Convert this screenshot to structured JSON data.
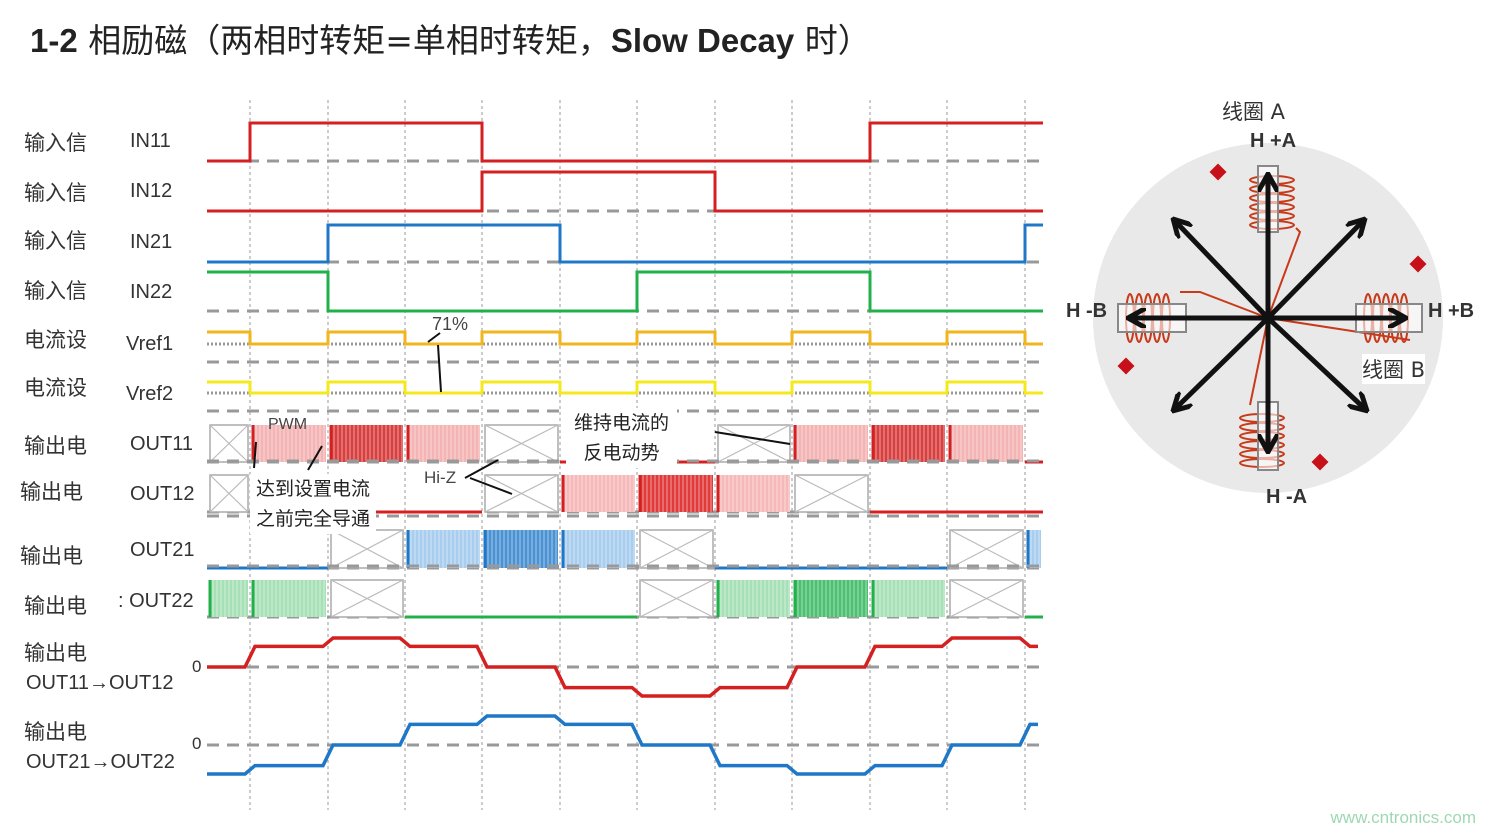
{
  "title": {
    "prefix": "1-2",
    "text": " 相励磁（两相时转矩=单相时转矩，",
    "bold": "Slow Decay",
    "suffix": " 时）"
  },
  "colors": {
    "red": "#d42020",
    "blue": "#1f77c8",
    "green": "#22b04a",
    "orange": "#f2b61c",
    "yellow": "#f5e81c",
    "grid": "#999999"
  },
  "rows": [
    {
      "label": "输入信",
      "signal": "IN11"
    },
    {
      "label": "输入信",
      "signal": "IN12"
    },
    {
      "label": "输入信",
      "signal": "IN21"
    },
    {
      "label": "输入信",
      "signal": "IN22"
    },
    {
      "label": "电流设",
      "signal": "Vref1"
    },
    {
      "label": "电流设",
      "signal": "Vref2"
    },
    {
      "label": "输出电",
      "signal": "OUT11"
    },
    {
      "label": "输出电",
      "signal": "OUT12"
    },
    {
      "label": "输出电",
      "signal": "OUT21"
    },
    {
      "label": "输出电",
      "signal": ":  OUT22"
    },
    {
      "label": "输出电",
      "signal": "OUT11→OUT12",
      "zero": "0"
    },
    {
      "label": "输出电",
      "signal": "OUT21→OUT22",
      "zero": "0"
    }
  ],
  "logic": {
    "IN11": [
      0,
      1,
      1,
      1,
      0,
      0,
      0,
      0,
      0,
      1,
      1,
      1
    ],
    "IN12": [
      0,
      0,
      0,
      0,
      1,
      1,
      1,
      0,
      0,
      0,
      0,
      0
    ],
    "IN21": [
      0,
      0,
      1,
      1,
      1,
      0,
      0,
      0,
      0,
      0,
      0,
      1
    ],
    "IN22": [
      1,
      1,
      0,
      0,
      0,
      0,
      1,
      1,
      1,
      0,
      0,
      0
    ],
    "Vref1": [
      1,
      0,
      1,
      0,
      1,
      0,
      1,
      0,
      1,
      0,
      1,
      0
    ],
    "Vref2": [
      1,
      0,
      1,
      0,
      1,
      0,
      1,
      0,
      1,
      0,
      1,
      0
    ]
  },
  "outputs": {
    "OUT11": [
      "z",
      "pwm",
      "on",
      "pwm",
      "z",
      "low",
      "low",
      "z",
      "pwm",
      "on",
      "pwm",
      "low"
    ],
    "OUT12": [
      "z",
      "z",
      "low",
      "low",
      "z",
      "pwm",
      "on",
      "pwm",
      "z",
      "low",
      "low",
      "low"
    ],
    "OUT21": [
      "low",
      "low",
      "z",
      "pwm",
      "on",
      "pwm",
      "z",
      "low",
      "low",
      "low",
      "z",
      "pwm"
    ],
    "OUT22": [
      "pwm",
      "pwm",
      "z",
      "low",
      "low",
      "low",
      "z",
      "pwm",
      "on",
      "pwm",
      "z",
      "low"
    ]
  },
  "currents": {
    "OUT11→OUT12": [
      0,
      0.71,
      1,
      0.71,
      0,
      -0.71,
      -1,
      -0.71,
      0,
      0.71,
      1,
      0.71
    ],
    "OUT21→OUT22": [
      -1,
      -0.71,
      0,
      0.71,
      1,
      0.71,
      0,
      -0.71,
      -1,
      -0.71,
      0,
      0.71
    ]
  },
  "annotations": {
    "pct": "71%",
    "pwm": "PWM",
    "hiz": "Hi-Z",
    "full_on_1": "达到设置电流",
    "full_on_2": "之前完全导通",
    "back_emf_1": "维持电流的",
    "back_emf_2": "反电动势"
  },
  "motor": {
    "coil_a": "线圈 A",
    "coil_b": "线圈 B",
    "hpa": "H +A",
    "hma": "H -A",
    "hpb": "H +B",
    "hmb": "H -B"
  },
  "watermark": "www.cntronics.com"
}
